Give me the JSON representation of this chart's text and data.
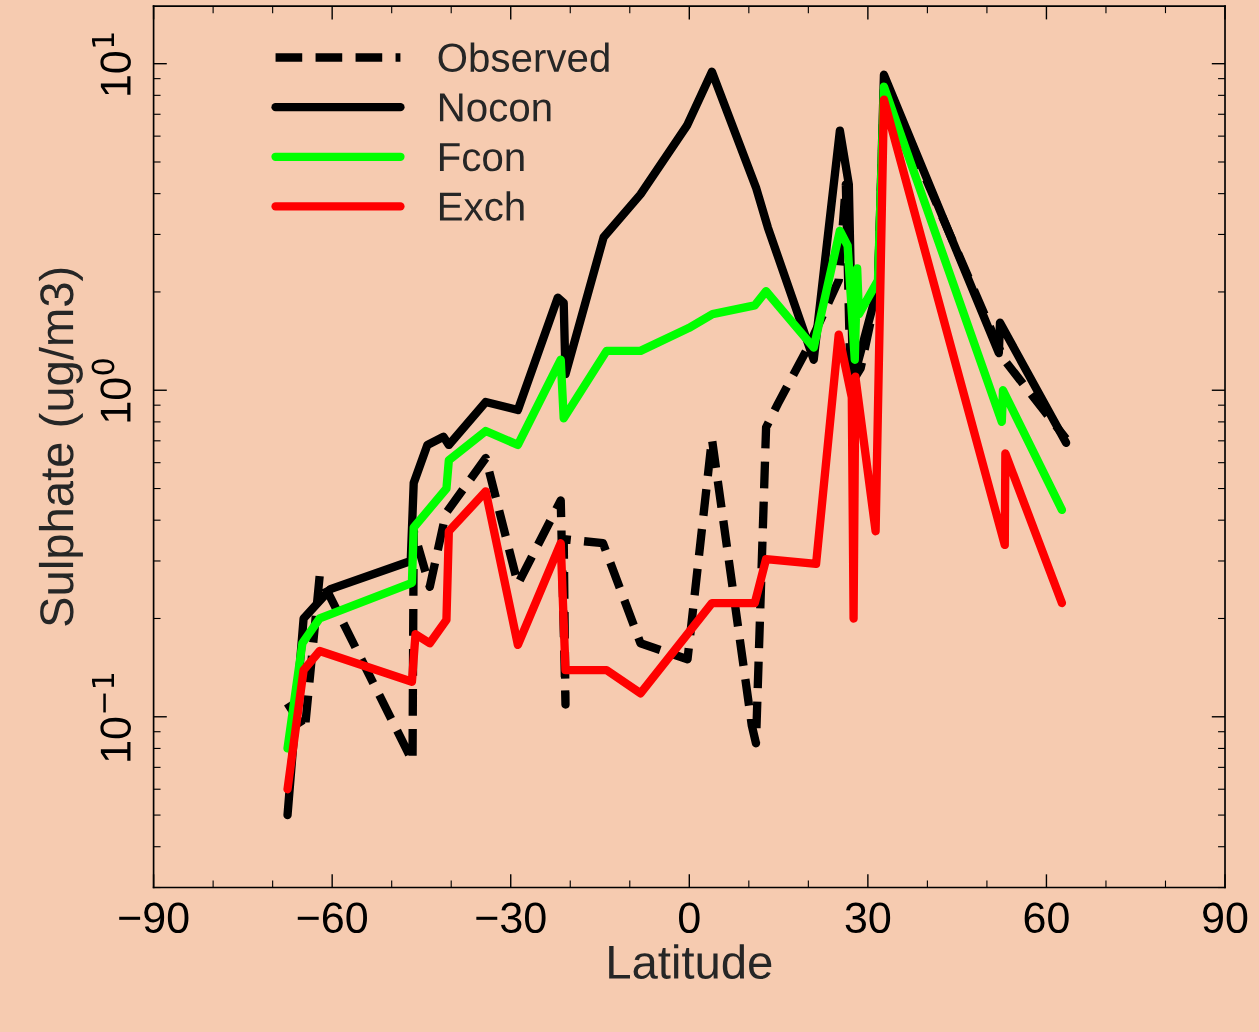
{
  "chart_data": {
    "type": "line",
    "xlabel": "Latitude",
    "ylabel": "Sulphate (ug/m3)",
    "log": "y",
    "xlim": [
      -90,
      90
    ],
    "ylim": [
      0.03,
      15
    ],
    "xticks": [
      {
        "value": -90,
        "label": "−90"
      },
      {
        "value": -80,
        "label": null
      },
      {
        "value": -70,
        "label": null
      },
      {
        "value": -60,
        "label": "−60"
      },
      {
        "value": -50,
        "label": null
      },
      {
        "value": -40,
        "label": null
      },
      {
        "value": -30,
        "label": "−30"
      },
      {
        "value": -20,
        "label": null
      },
      {
        "value": -10,
        "label": null
      },
      0,
      {
        "value": 10,
        "label": null
      },
      {
        "value": 20,
        "label": null
      },
      30,
      {
        "value": 40,
        "label": null
      },
      {
        "value": 50,
        "label": null
      },
      60,
      {
        "value": 70,
        "label": null
      },
      {
        "value": 80,
        "label": null
      },
      90
    ],
    "yticks": [
      {
        "value": 0.1,
        "label": "10$^{−1}$"
      },
      {
        "value": 1,
        "label": "10$^{0}$"
      },
      {
        "value": 10,
        "label": "10$^{1}$"
      }
    ],
    "grid": false,
    "legend": "top left",
    "marker": "none",
    "series": [
      {
        "name": "Observed",
        "color": "#000000",
        "line_style": "dashed",
        "x": [
          -67.5,
          -64.6,
          -62.1,
          -46.5,
          -46.3,
          -43.6,
          -40.9,
          -34.2,
          -28.8,
          -21.6,
          -20.8,
          -21.1,
          -14.5,
          -8.2,
          -0.3,
          3.8,
          10.5,
          11.2,
          12.9,
          14.9,
          20.1,
          25.1,
          26.3,
          27.1,
          28.8,
          31.7,
          32.7,
          38.7,
          52.9,
          63.3
        ],
        "values": [
          0.11,
          0.091,
          0.27,
          0.073,
          0.37,
          0.25,
          0.42,
          0.62,
          0.255,
          0.46,
          0.109,
          0.35,
          0.34,
          0.168,
          0.15,
          0.71,
          0.094,
          0.083,
          0.77,
          0.91,
          1.37,
          2.17,
          4.27,
          1.04,
          1.17,
          2.07,
          8.3,
          4.91,
          1.24,
          0.71
        ]
      },
      {
        "name": "Nocon",
        "color": "#000000",
        "line_style": "solid",
        "x": [
          -67.5,
          -64.8,
          -60.3,
          -46.8,
          -46.3,
          -44.0,
          -41.3,
          -40.4,
          -34.2,
          -28.8,
          -22.1,
          -21.1,
          -20.8,
          -14.4,
          -8.2,
          -0.4,
          3.8,
          11.2,
          13.2,
          20.9,
          25.3,
          26.8,
          27.5,
          31.7,
          32.7,
          52.0,
          52.2,
          63.3
        ],
        "values": [
          0.05,
          0.2,
          0.246,
          0.3,
          0.52,
          0.68,
          0.72,
          0.68,
          0.92,
          0.87,
          1.92,
          1.85,
          1.12,
          2.94,
          3.98,
          6.46,
          9.45,
          4.18,
          3.15,
          1.24,
          6.24,
          4.27,
          1.07,
          2.07,
          9.25,
          1.3,
          1.61,
          0.69
        ]
      },
      {
        "name": "Fcon",
        "color": "#00ff00",
        "line_style": "solid",
        "x": [
          -67.5,
          -65.0,
          -62.1,
          -46.6,
          -46.3,
          -40.8,
          -40.4,
          -34.2,
          -28.8,
          -21.6,
          -21.1,
          -13.9,
          -8.2,
          -0.1,
          3.9,
          11.0,
          12.9,
          20.9,
          25.3,
          26.6,
          27.8,
          28.2,
          28.5,
          31.7,
          32.7,
          52.5,
          52.7,
          62.6
        ],
        "values": [
          0.08,
          0.168,
          0.2,
          0.257,
          0.38,
          0.5,
          0.61,
          0.75,
          0.68,
          1.24,
          0.82,
          1.32,
          1.32,
          1.55,
          1.71,
          1.82,
          2.01,
          1.35,
          3.08,
          2.77,
          1.24,
          2.36,
          1.71,
          2.17,
          8.51,
          0.8,
          1.0,
          0.43
        ]
      },
      {
        "name": "Exch",
        "color": "#ff0000",
        "line_style": "solid",
        "x": [
          -67.5,
          -64.8,
          -62.1,
          -46.6,
          -46.0,
          -43.6,
          -40.8,
          -40.4,
          -34.2,
          -28.8,
          -21.6,
          -20.8,
          -13.9,
          -8.2,
          3.8,
          11.0,
          12.9,
          21.3,
          25.1,
          27.3,
          27.6,
          27.9,
          31.3,
          32.7,
          53.0,
          53.1,
          62.6
        ],
        "values": [
          0.06,
          0.139,
          0.159,
          0.128,
          0.179,
          0.168,
          0.198,
          0.37,
          0.49,
          0.166,
          0.34,
          0.139,
          0.139,
          0.118,
          0.223,
          0.223,
          0.304,
          0.294,
          1.48,
          0.95,
          0.2,
          1.1,
          0.37,
          7.76,
          0.336,
          0.64,
          0.223
        ]
      }
    ]
  }
}
